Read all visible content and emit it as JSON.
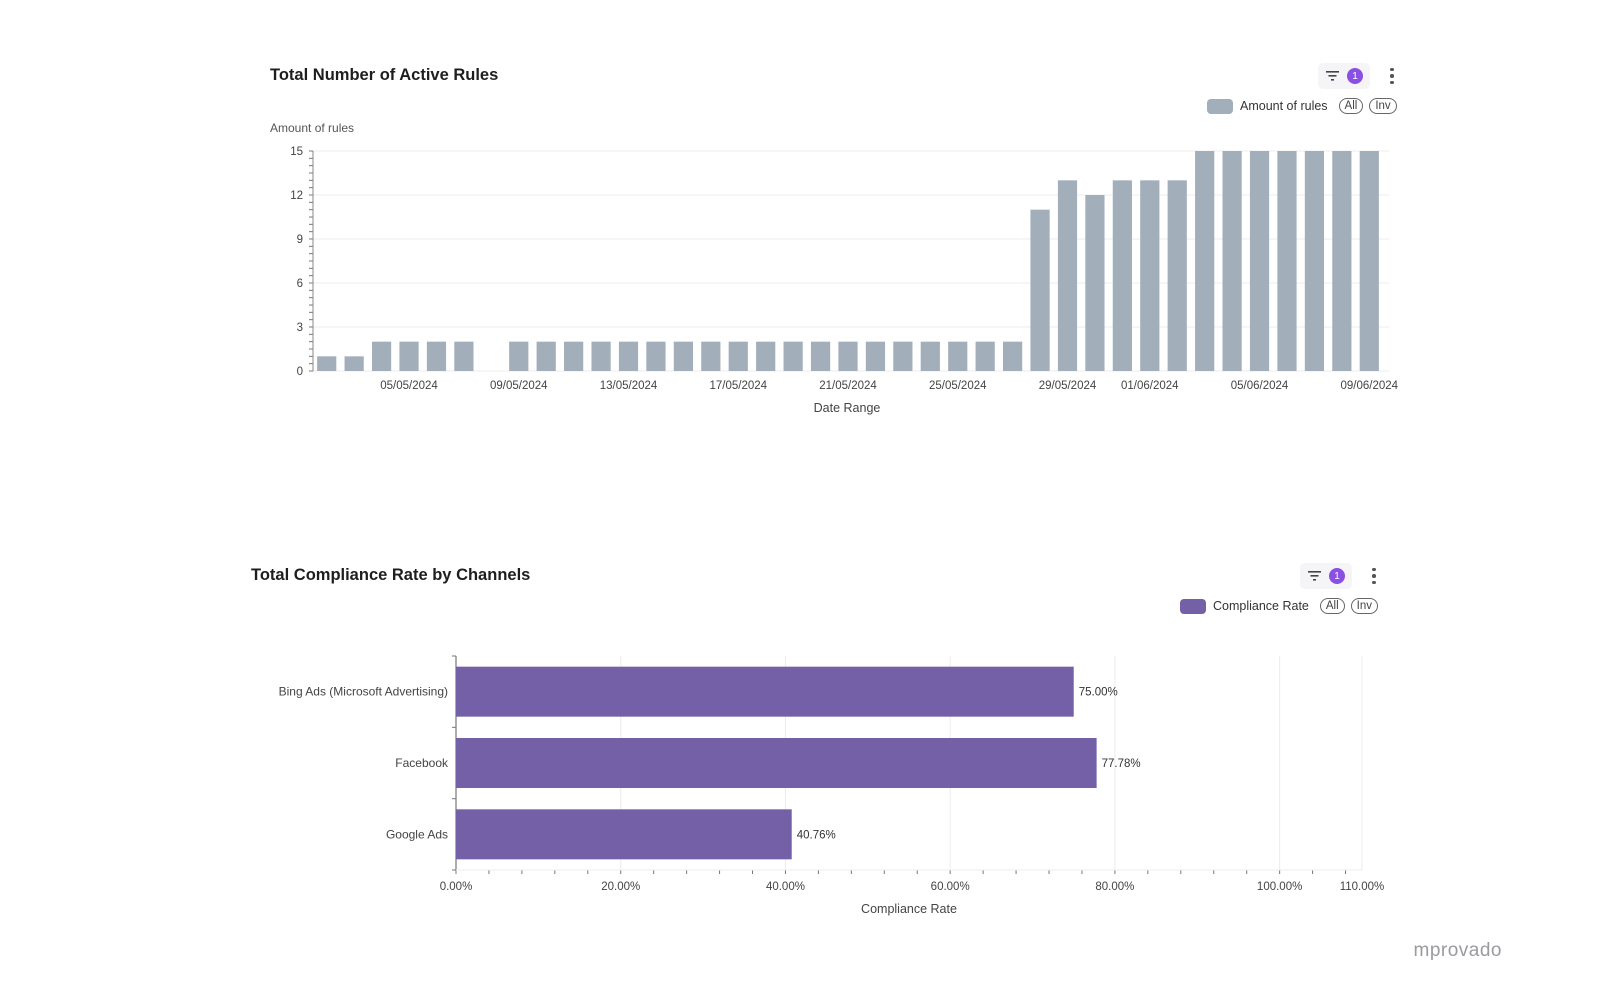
{
  "chart1": {
    "title": "Total Number of Active Rules",
    "filter_badge": "1",
    "legend": {
      "label": "Amount of rules",
      "all_label": "All",
      "inv_label": "Inv"
    },
    "colors": {
      "bar": "#a3aebb"
    }
  },
  "chart2": {
    "title": "Total Compliance Rate by Channels",
    "filter_badge": "1",
    "legend": {
      "label": "Compliance Rate",
      "all_label": "All",
      "inv_label": "Inv"
    },
    "colors": {
      "bar": "#7460a6"
    }
  },
  "brand": "mprovado",
  "chart_data": [
    {
      "type": "bar",
      "title": "Total Number of Active Rules",
      "ylabel": "Amount of rules",
      "xlabel": "Date Range",
      "ylim": [
        0,
        15
      ],
      "yticks": [
        0,
        3,
        6,
        9,
        12,
        15
      ],
      "categories": [
        "02/05/2024",
        "03/05/2024",
        "04/05/2024",
        "05/05/2024",
        "06/05/2024",
        "07/05/2024",
        "08/05/2024",
        "09/05/2024",
        "10/05/2024",
        "11/05/2024",
        "12/05/2024",
        "13/05/2024",
        "14/05/2024",
        "15/05/2024",
        "16/05/2024",
        "17/05/2024",
        "18/05/2024",
        "19/05/2024",
        "20/05/2024",
        "21/05/2024",
        "22/05/2024",
        "23/05/2024",
        "24/05/2024",
        "25/05/2024",
        "26/05/2024",
        "27/05/2024",
        "28/05/2024",
        "29/05/2024",
        "30/05/2024",
        "31/05/2024",
        "01/06/2024",
        "02/06/2024",
        "03/06/2024",
        "04/06/2024",
        "05/06/2024",
        "06/06/2024",
        "07/06/2024",
        "08/06/2024",
        "09/06/2024"
      ],
      "values": [
        1,
        1,
        2,
        2,
        2,
        2,
        null,
        2,
        2,
        2,
        2,
        2,
        2,
        2,
        2,
        2,
        2,
        2,
        2,
        2,
        2,
        2,
        2,
        2,
        2,
        2,
        11,
        13,
        12,
        13,
        13,
        13,
        15,
        15,
        15,
        15,
        15,
        15,
        15
      ],
      "tick_labels": [
        "05/05/2024",
        "09/05/2024",
        "13/05/2024",
        "17/05/2024",
        "21/05/2024",
        "25/05/2024",
        "29/05/2024",
        "01/06/2024",
        "05/06/2024",
        "09/06/2024"
      ],
      "series": [
        {
          "name": "Amount of rules"
        }
      ]
    },
    {
      "type": "bar",
      "orientation": "horizontal",
      "title": "Total Compliance Rate by Channels",
      "xlabel": "Compliance Rate",
      "ylabel": "",
      "categories": [
        "Bing Ads (Microsoft Advertising)",
        "Facebook",
        "Google Ads"
      ],
      "values": [
        75.0,
        77.78,
        40.76
      ],
      "data_labels": [
        "75.00%",
        "77.78%",
        "40.76%"
      ],
      "xlim": [
        0,
        110
      ],
      "xticks": [
        0,
        20,
        40,
        60,
        80,
        100,
        110
      ],
      "xtick_labels": [
        "0.00%",
        "20.00%",
        "40.00%",
        "60.00%",
        "80.00%",
        "100.00%",
        "110.00%"
      ],
      "series": [
        {
          "name": "Compliance Rate"
        }
      ]
    }
  ]
}
